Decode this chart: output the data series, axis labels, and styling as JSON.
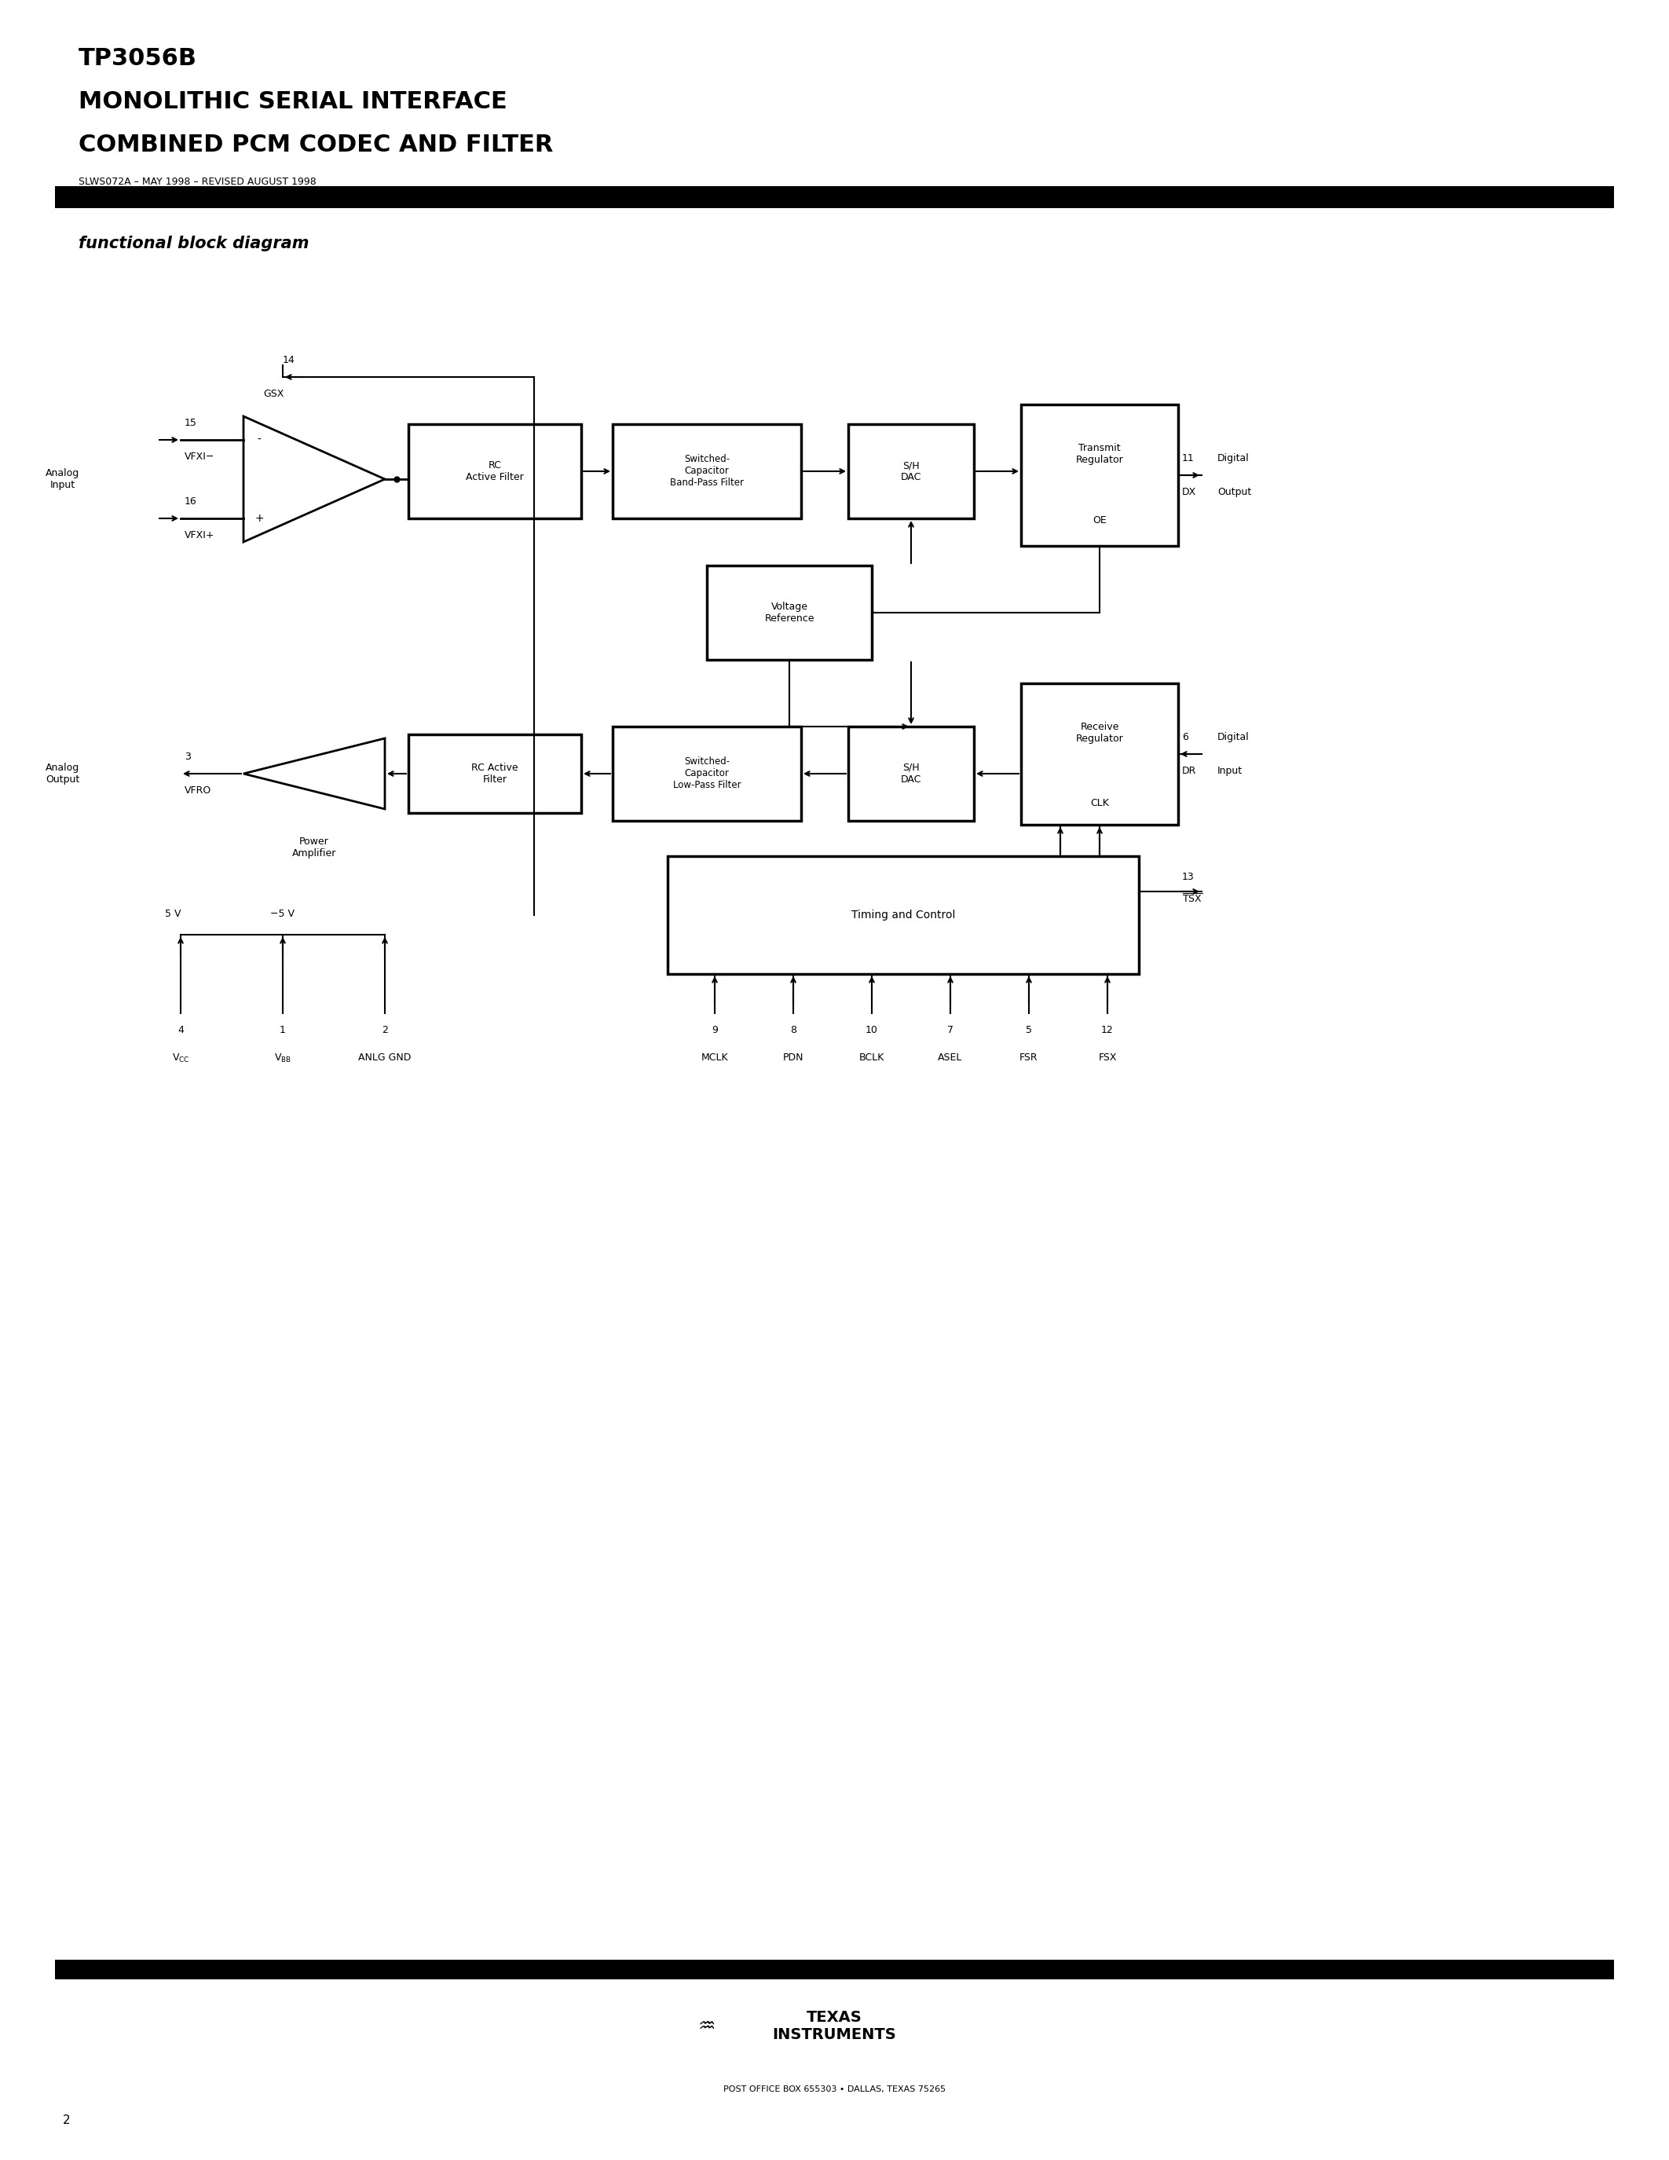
{
  "title_line1": "TP3056B",
  "title_line2": "MONOLITHIC SERIAL INTERFACE",
  "title_line3": "COMBINED PCM CODEC AND FILTER",
  "subtitle": "SLWS072A – MAY 1998 – REVISED AUGUST 1998",
  "section_title": "functional block diagram",
  "page_number": "2",
  "footer_text": "POST OFFICE BOX 655303 • DALLAS, TEXAS 75265",
  "bg_color": "#ffffff",
  "text_color": "#000000",
  "bar_color": "#1a1a1a"
}
